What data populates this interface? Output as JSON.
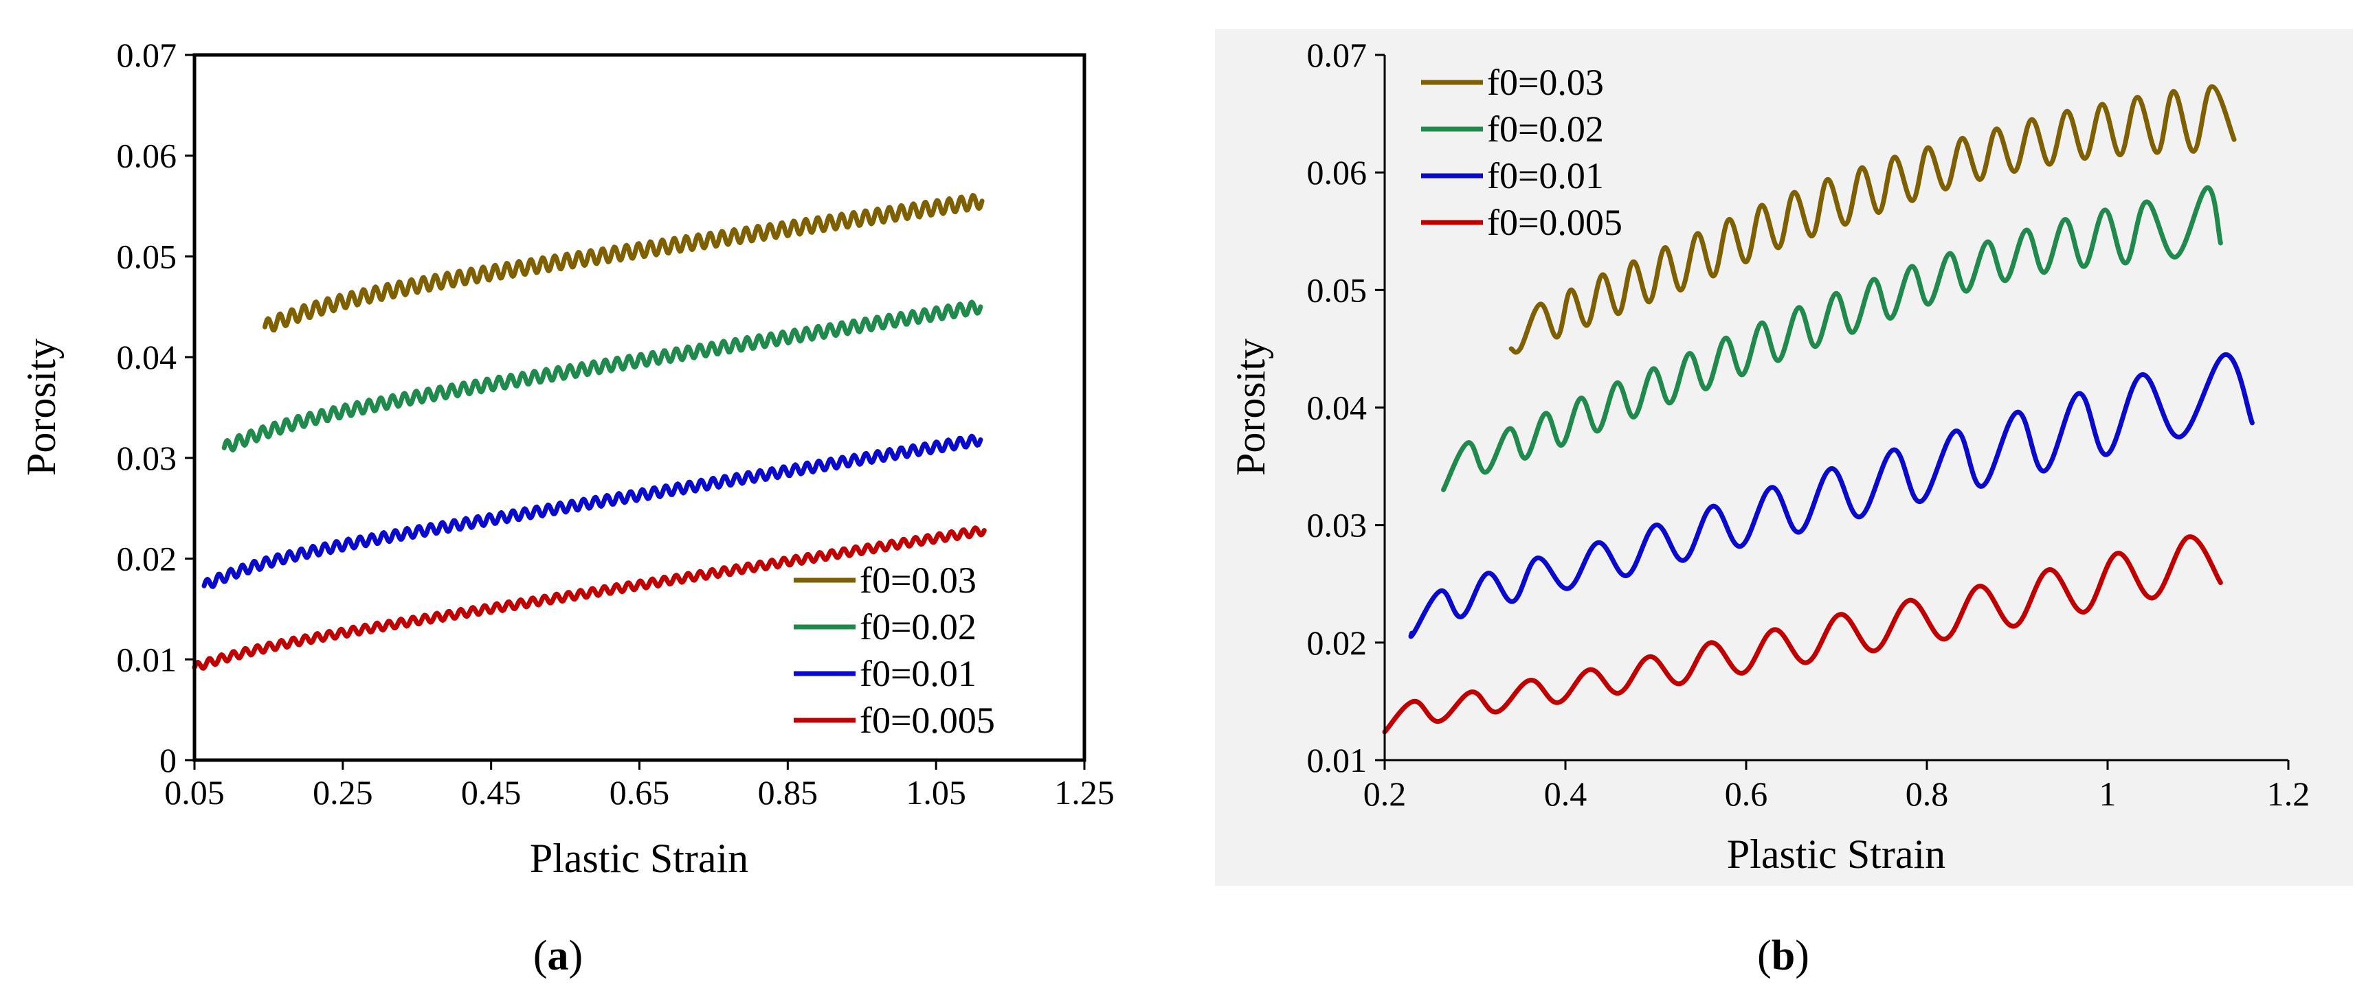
{
  "figure": {
    "panels": [
      {
        "caption_open": "(",
        "caption_letter": "a",
        "caption_close": ")"
      },
      {
        "caption_open": "(",
        "caption_letter": "b",
        "caption_close": ")"
      }
    ]
  },
  "colors": {
    "f0_0.03": "#7f6000",
    "f0_0.02": "#1f8a4c",
    "f0_0.01": "#0a0acd",
    "f0_0.005": "#c00000",
    "panel_b_background": "#f2f2f2"
  },
  "chart_data": [
    {
      "type": "line",
      "panel": "a",
      "title": "",
      "xlabel": "Plastic Strain",
      "ylabel": "Porosity",
      "xlim": [
        0.05,
        1.25
      ],
      "ylim": [
        0,
        0.07
      ],
      "xticks": [
        "0.05",
        "0.25",
        "0.45",
        "0.65",
        "0.85",
        "1.05",
        "1.25"
      ],
      "yticks": [
        "0",
        "0.01",
        "0.02",
        "0.03",
        "0.04",
        "0.05",
        "0.06",
        "0.07"
      ],
      "legend_position": "bottom-right",
      "series": [
        {
          "name": "f0=0.03",
          "color_key": "f0_0.03",
          "x_start": 0.145,
          "x_end": 1.112,
          "y_start": 0.043,
          "y_end": 0.0555,
          "oscillations": 60,
          "amplitude": 0.0007,
          "rise_scale": 0.11,
          "rise": 0.0023
        },
        {
          "name": "f0=0.02",
          "color_key": "f0_0.02",
          "x_start": 0.09,
          "x_end": 1.11,
          "y_start": 0.031,
          "y_end": 0.045,
          "oscillations": 64,
          "amplitude": 0.0006,
          "rise_scale": 0.1,
          "rise": 0.0022
        },
        {
          "name": "f0=0.01",
          "color_key": "f0_0.01",
          "x_start": 0.063,
          "x_end": 1.11,
          "y_start": 0.0173,
          "y_end": 0.0318,
          "oscillations": 66,
          "amplitude": 0.0005,
          "rise_scale": 0.08,
          "rise": 0.002
        },
        {
          "name": "f0=0.005",
          "color_key": "f0_0.005",
          "x_start": 0.05,
          "x_end": 1.115,
          "y_start": 0.0092,
          "y_end": 0.0228,
          "oscillations": 66,
          "amplitude": 0.0004,
          "rise_scale": 0.08,
          "rise": 0.0012
        }
      ]
    },
    {
      "type": "line",
      "panel": "b",
      "title": "",
      "xlabel": "Plastic Strain",
      "ylabel": "Porosity",
      "xlim": [
        0.2,
        1.2
      ],
      "ylim": [
        0.01,
        0.07
      ],
      "xticks": [
        "0.2",
        "0.4",
        "0.6",
        "0.8",
        "1",
        "1.2"
      ],
      "yticks": [
        "0.01",
        "0.02",
        "0.03",
        "0.04",
        "0.05",
        "0.06",
        "0.07"
      ],
      "legend_position": "top-left",
      "series": [
        {
          "name": "f0=0.03",
          "color_key": "f0_0.03",
          "x_start": 0.34,
          "peaks_x": [
            0.372,
            0.406,
            0.441,
            0.475,
            0.51,
            0.546,
            0.581,
            0.617,
            0.653,
            0.69,
            0.728,
            0.764,
            0.801,
            0.839,
            0.877,
            0.916,
            0.955,
            0.994,
            1.033,
            1.073,
            1.115
          ],
          "peaks_y": [
            0.0488,
            0.05,
            0.0513,
            0.0524,
            0.0536,
            0.0548,
            0.056,
            0.0572,
            0.0583,
            0.0594,
            0.0604,
            0.0613,
            0.0621,
            0.0629,
            0.0637,
            0.0645,
            0.0652,
            0.0658,
            0.0664,
            0.0669,
            0.0673
          ],
          "troughs_x": [
            0.35,
            0.391,
            0.424,
            0.459,
            0.493,
            0.528,
            0.564,
            0.6,
            0.636,
            0.673,
            0.71,
            0.747,
            0.784,
            0.821,
            0.859,
            0.897,
            0.936,
            0.975,
            1.014,
            1.055,
            1.095
          ],
          "troughs_y": [
            0.045,
            0.046,
            0.047,
            0.048,
            0.049,
            0.05,
            0.0512,
            0.0524,
            0.0536,
            0.0546,
            0.0556,
            0.0566,
            0.0576,
            0.0586,
            0.0594,
            0.0601,
            0.0607,
            0.0612,
            0.0615,
            0.0617,
            0.0618
          ],
          "x_end": 1.14,
          "y_end": 0.0628
        },
        {
          "name": "f0=0.02",
          "color_key": "f0_0.02",
          "x_start": 0.265,
          "peaks_x": [
            0.292,
            0.338,
            0.378,
            0.417,
            0.457,
            0.497,
            0.537,
            0.577,
            0.617,
            0.658,
            0.699,
            0.741,
            0.783,
            0.825,
            0.867,
            0.91,
            0.953,
            0.997,
            1.043,
            1.11
          ],
          "peaks_y": [
            0.037,
            0.0382,
            0.0395,
            0.0408,
            0.0421,
            0.0433,
            0.0446,
            0.0459,
            0.0472,
            0.0485,
            0.0497,
            0.0509,
            0.052,
            0.0531,
            0.0541,
            0.0551,
            0.056,
            0.0568,
            0.0575,
            0.0587
          ],
          "troughs_x": [
            0.265,
            0.312,
            0.356,
            0.396,
            0.436,
            0.476,
            0.516,
            0.556,
            0.596,
            0.636,
            0.677,
            0.718,
            0.76,
            0.802,
            0.844,
            0.887,
            0.93,
            0.974,
            1.02,
            1.075
          ],
          "troughs_y": [
            0.033,
            0.0345,
            0.0357,
            0.0368,
            0.038,
            0.0392,
            0.0404,
            0.0416,
            0.0428,
            0.044,
            0.0452,
            0.0464,
            0.0476,
            0.0488,
            0.0499,
            0.0508,
            0.0515,
            0.052,
            0.0523,
            0.0528
          ],
          "x_end": 1.125,
          "y_end": 0.054
        },
        {
          "name": "f0=0.01",
          "color_key": "f0_0.01",
          "x_start": 0.23,
          "peaks_x": [
            0.262,
            0.314,
            0.369,
            0.436,
            0.5,
            0.563,
            0.628,
            0.694,
            0.763,
            0.832,
            0.9,
            0.968,
            1.038,
            1.13
          ],
          "peaks_y": [
            0.0244,
            0.0259,
            0.0272,
            0.0285,
            0.03,
            0.0316,
            0.0332,
            0.0348,
            0.0364,
            0.038,
            0.0396,
            0.0412,
            0.0428,
            0.0445
          ],
          "troughs_x": [
            0.232,
            0.285,
            0.342,
            0.403,
            0.468,
            0.531,
            0.594,
            0.659,
            0.726,
            0.793,
            0.861,
            0.93,
            0.999,
            1.08
          ],
          "troughs_y": [
            0.0208,
            0.0222,
            0.0235,
            0.0246,
            0.0257,
            0.027,
            0.0282,
            0.0294,
            0.0307,
            0.032,
            0.0333,
            0.0346,
            0.036,
            0.0375
          ],
          "x_end": 1.16,
          "y_end": 0.0387
        },
        {
          "name": "f0=0.005",
          "color_key": "f0_0.005",
          "x_start": 0.2,
          "peaks_x": [
            0.232,
            0.296,
            0.361,
            0.427,
            0.493,
            0.561,
            0.631,
            0.704,
            0.781,
            0.858,
            0.935,
            1.011,
            1.09
          ],
          "peaks_y": [
            0.015,
            0.0158,
            0.0168,
            0.0177,
            0.0188,
            0.02,
            0.0211,
            0.0224,
            0.0236,
            0.0248,
            0.0262,
            0.0276,
            0.029
          ],
          "troughs_x": [
            0.2,
            0.26,
            0.324,
            0.392,
            0.459,
            0.527,
            0.596,
            0.667,
            0.742,
            0.82,
            0.897,
            0.974,
            1.05
          ],
          "troughs_y": [
            0.0124,
            0.0133,
            0.0141,
            0.0149,
            0.0157,
            0.0165,
            0.0174,
            0.0183,
            0.0193,
            0.0203,
            0.0214,
            0.0226,
            0.0238
          ],
          "x_end": 1.125,
          "y_end": 0.0251
        }
      ]
    }
  ]
}
